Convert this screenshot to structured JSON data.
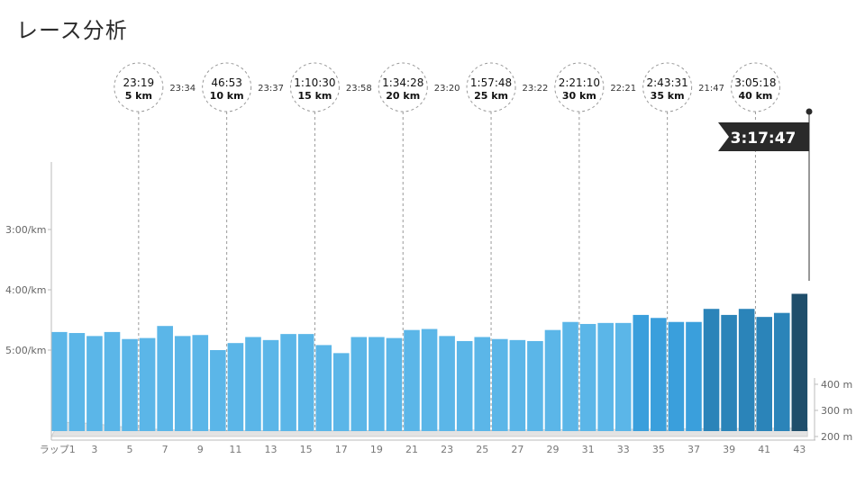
{
  "page_title": "レース分析",
  "chart_data": {
    "type": "bar",
    "ylabel_ticks": [
      "3:00/km",
      "4:00/km",
      "5:00/km"
    ],
    "ytick_seconds": [
      180,
      240,
      300
    ],
    "elevation_ticks": [
      "400 m",
      "300 m",
      "200 m"
    ],
    "elevation_tick_values": [
      400,
      300,
      200
    ],
    "x_first_label": "ラップ1",
    "x_ticks": [
      "3",
      "5",
      "7",
      "9",
      "11",
      "13",
      "15",
      "17",
      "19",
      "21",
      "23",
      "25",
      "27",
      "29",
      "31",
      "33",
      "35",
      "37",
      "39",
      "41",
      "43"
    ],
    "laps": [
      1,
      2,
      3,
      4,
      5,
      6,
      7,
      8,
      9,
      10,
      11,
      12,
      13,
      14,
      15,
      16,
      17,
      18,
      19,
      20,
      21,
      22,
      23,
      24,
      25,
      26,
      27,
      28,
      29,
      30,
      31,
      32,
      33,
      34,
      35,
      36,
      37,
      38,
      39,
      40,
      41,
      42,
      43
    ],
    "pace_seconds_per_km": [
      282,
      283,
      286,
      282,
      289,
      288,
      276,
      286,
      285,
      300,
      293,
      287,
      290,
      284,
      284,
      295,
      303,
      287,
      287,
      288,
      280,
      279,
      286,
      291,
      287,
      289,
      290,
      291,
      280,
      272,
      274,
      273,
      273,
      265,
      268,
      272,
      272,
      259,
      265,
      259,
      267,
      263,
      244
    ],
    "elevation_m": [
      255,
      252,
      250,
      240,
      235,
      230,
      225,
      225,
      226,
      224,
      223,
      223,
      222,
      222,
      222,
      222,
      222,
      222,
      223,
      223,
      223,
      224,
      224,
      224,
      225,
      225,
      225,
      225,
      226,
      226,
      226,
      227,
      227,
      228,
      228,
      229,
      229,
      230,
      230,
      231,
      231,
      232,
      232
    ],
    "checkpoints": [
      {
        "time": "23:19",
        "dist": "5 km",
        "lap": 5
      },
      {
        "time": "46:53",
        "dist": "10 km",
        "lap": 10
      },
      {
        "time": "1:10:30",
        "dist": "15 km",
        "lap": 15
      },
      {
        "time": "1:34:28",
        "dist": "20 km",
        "lap": 20
      },
      {
        "time": "1:57:48",
        "dist": "25 km",
        "lap": 25
      },
      {
        "time": "2:21:10",
        "dist": "30 km",
        "lap": 30
      },
      {
        "time": "2:43:31",
        "dist": "35 km",
        "lap": 35
      },
      {
        "time": "3:05:18",
        "dist": "40 km",
        "lap": 40
      }
    ],
    "splits": [
      "23:34",
      "23:37",
      "23:58",
      "23:20",
      "23:22",
      "22:21",
      "21:47"
    ],
    "finish_time": "3:17:47",
    "colors": {
      "bar_light": "#5bb6e8",
      "bar_mid": "#3a9fdc",
      "bar_dark": "#2b84b9",
      "bar_final": "#1f4e6b",
      "elevation": "#e3e3e3",
      "flag": "#2a2a2a"
    }
  }
}
